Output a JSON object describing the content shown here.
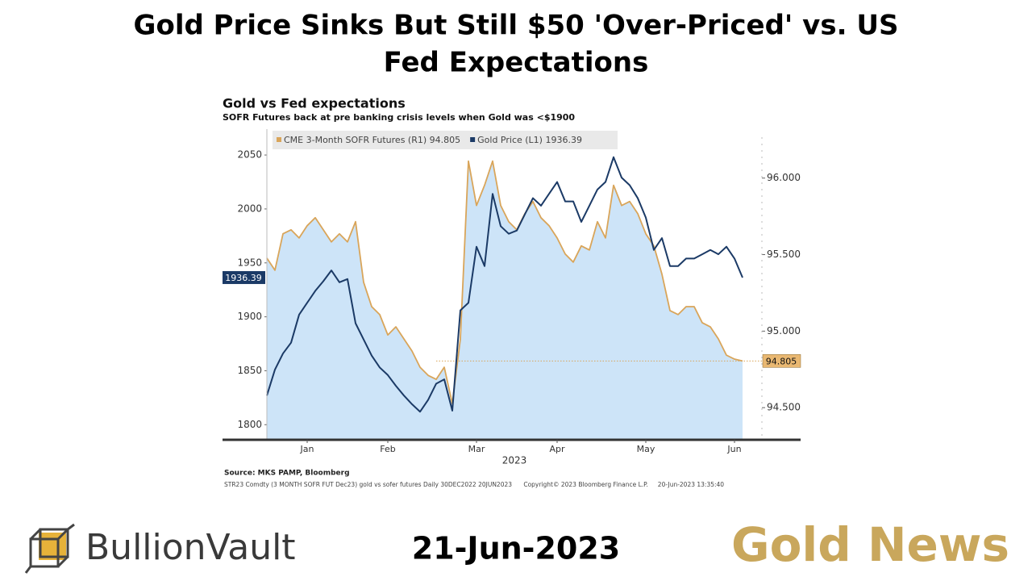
{
  "header": {
    "title_line1": "Gold Price Sinks But Still $50 'Over-Priced' vs. US",
    "title_line2": "Fed Expectations"
  },
  "chart_data": {
    "type": "line",
    "title": "Gold vs Fed expectations",
    "subtitle": "SOFR Futures back at pre banking crisis levels when Gold was <$1900",
    "xlabel": "2023",
    "categories": [
      null,
      null,
      null,
      null,
      null,
      "Jan",
      null,
      null,
      null,
      null,
      null,
      null,
      null,
      null,
      null,
      "Feb",
      null,
      null,
      null,
      null,
      null,
      null,
      null,
      null,
      null,
      null,
      "Mar",
      null,
      null,
      null,
      null,
      null,
      null,
      null,
      null,
      null,
      "Apr",
      null,
      null,
      null,
      null,
      null,
      null,
      null,
      null,
      null,
      null,
      "May",
      null,
      null,
      null,
      null,
      null,
      null,
      null,
      null,
      null,
      null,
      "Jun",
      null
    ],
    "series": [
      {
        "name": "CME 3-Month SOFR Futures (R1) 94.805",
        "axis": "y2",
        "color": "#d9a55a",
        "area_color": "#cde4f8",
        "area": true,
        "tag": "94.805",
        "tag_color": "#e9b872",
        "values": [
          95.477,
          95.398,
          95.636,
          95.662,
          95.609,
          95.689,
          95.741,
          95.662,
          95.583,
          95.636,
          95.583,
          95.715,
          95.319,
          95.16,
          95.108,
          94.975,
          95.028,
          94.949,
          94.87,
          94.764,
          94.711,
          94.685,
          94.764,
          94.526,
          94.949,
          96.111,
          95.821,
          95.953,
          96.111,
          95.821,
          95.715,
          95.662,
          95.768,
          95.847,
          95.741,
          95.689,
          95.609,
          95.504,
          95.451,
          95.557,
          95.53,
          95.715,
          95.609,
          95.953,
          95.821,
          95.847,
          95.768,
          95.636,
          95.557,
          95.372,
          95.134,
          95.108,
          95.16,
          95.16,
          95.055,
          95.028,
          94.949,
          94.843,
          94.817,
          94.805
        ]
      },
      {
        "name": "Gold Price (L1) 1936.39",
        "color": "#1b3a66",
        "area": false,
        "tag": "1936.39",
        "tag_color": "#1b3a66",
        "values": [
          1827,
          1851,
          1866,
          1876,
          1902,
          1913,
          1924,
          1933,
          1943,
          1932,
          1935,
          1894,
          1879,
          1864,
          1853,
          1846,
          1836,
          1827,
          1819,
          1812,
          1823,
          1838,
          1842,
          1813,
          1906,
          1913,
          1965,
          1947,
          2014,
          1984,
          1977,
          1980,
          1995,
          2010,
          2003,
          2014,
          2025,
          2007,
          2007,
          1988,
          2003,
          2018,
          2025,
          2048,
          2029,
          2022,
          2010,
          1992,
          1962,
          1973,
          1947,
          1947,
          1954,
          1954,
          1958,
          1962,
          1958,
          1965,
          1954,
          1936.39
        ]
      }
    ],
    "ylim": [
      1786,
      2074
    ],
    "yticks": [
      1800,
      1850,
      1900,
      1950,
      2000,
      2050
    ],
    "y2lim": [
      94.29,
      96.32
    ],
    "y2ticks": [
      {
        "value": 94.5,
        "label": "94.500"
      },
      {
        "value": 95,
        "label": "95.000"
      },
      {
        "value": 95.5,
        "label": "95.500"
      },
      {
        "value": 96,
        "label": "96.000"
      }
    ],
    "grid": false,
    "source": "Source: MKS PAMP, Bloomberg",
    "footnote": "STR23 Comdty (3 MONTH SOFR FUT Dec23) gold vs sofer futures Daily 30DEC2022 20JUN2023      Copyright© 2023 Bloomberg Finance L.P.     20-Jun-2023 13:35:40"
  },
  "footer": {
    "brand": "BullionVault",
    "date": "21-Jun-2023",
    "section": "Gold News"
  }
}
